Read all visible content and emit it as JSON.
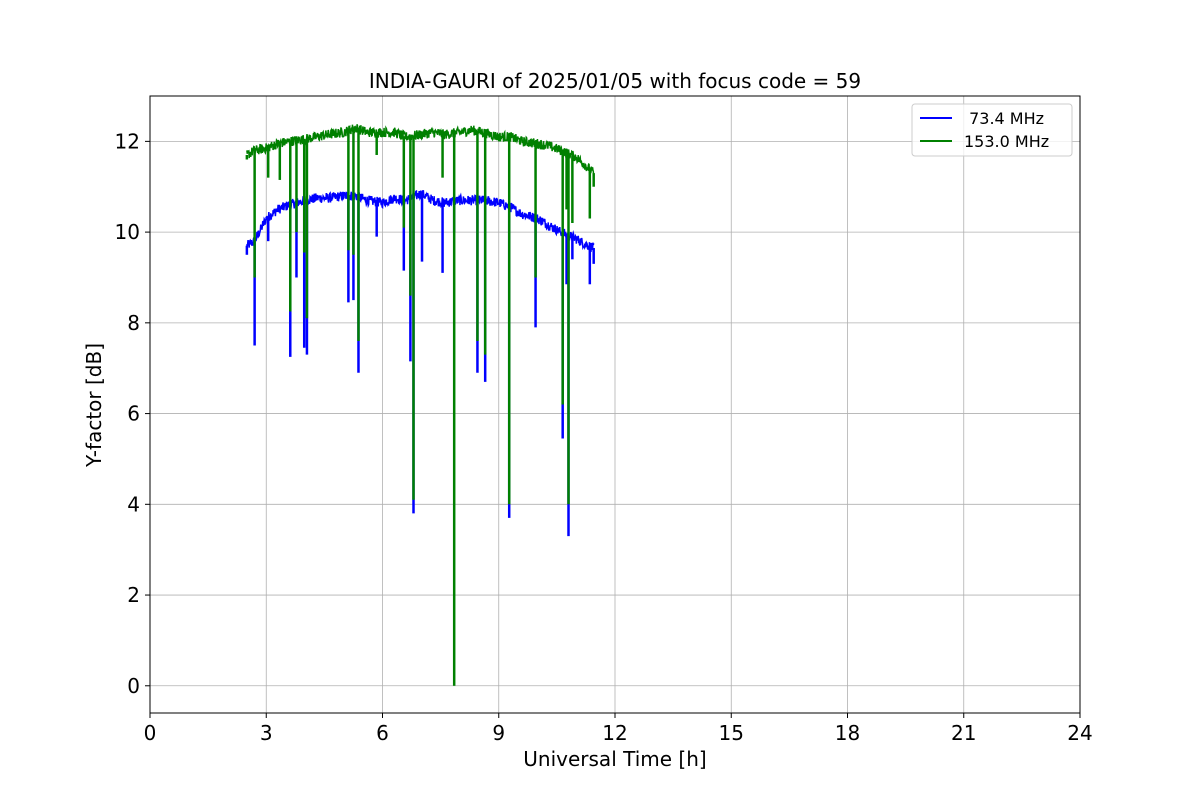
{
  "chart_data": {
    "type": "line",
    "title": "INDIA-GAURI of 2025/01/05 with focus code = 59",
    "xlabel": "Universal Time [h]",
    "ylabel": "Y-factor [dB]",
    "xlim": [
      0,
      24
    ],
    "ylim": [
      -0.6,
      13.0
    ],
    "xticks": [
      0,
      3,
      6,
      9,
      12,
      15,
      18,
      21,
      24
    ],
    "yticks": [
      0,
      2,
      4,
      6,
      8,
      10,
      12
    ],
    "grid": true,
    "legend_position": "top-right",
    "series": [
      {
        "name": " 73.4 MHz",
        "color": "#0000ff",
        "x": [
          2.5,
          2.7,
          3.0,
          3.3,
          3.6,
          4.0,
          4.3,
          4.6,
          5.0,
          5.3,
          5.6,
          6.0,
          6.3,
          6.6,
          7.0,
          7.3,
          7.6,
          8.0,
          8.3,
          8.6,
          9.0,
          9.3,
          9.6,
          10.0,
          10.3,
          10.6,
          11.0,
          11.2,
          11.45
        ],
        "values": [
          9.7,
          9.8,
          10.3,
          10.5,
          10.6,
          10.7,
          10.75,
          10.75,
          10.8,
          10.8,
          10.7,
          10.65,
          10.75,
          10.7,
          10.85,
          10.7,
          10.65,
          10.7,
          10.7,
          10.7,
          10.65,
          10.55,
          10.4,
          10.3,
          10.15,
          10.0,
          9.85,
          9.75,
          9.65
        ],
        "dips": [
          {
            "x": 2.5,
            "y": 9.5
          },
          {
            "x": 2.7,
            "y": 7.5
          },
          {
            "x": 3.05,
            "y": 9.8
          },
          {
            "x": 3.62,
            "y": 7.25
          },
          {
            "x": 3.78,
            "y": 9.0
          },
          {
            "x": 3.98,
            "y": 7.45
          },
          {
            "x": 4.05,
            "y": 7.3
          },
          {
            "x": 5.12,
            "y": 8.45
          },
          {
            "x": 5.25,
            "y": 8.5
          },
          {
            "x": 5.38,
            "y": 6.9
          },
          {
            "x": 5.85,
            "y": 9.9
          },
          {
            "x": 6.55,
            "y": 9.15
          },
          {
            "x": 6.72,
            "y": 7.15
          },
          {
            "x": 6.8,
            "y": 3.8
          },
          {
            "x": 7.02,
            "y": 9.35
          },
          {
            "x": 7.55,
            "y": 9.1
          },
          {
            "x": 7.85,
            "y": 10.0
          },
          {
            "x": 8.45,
            "y": 6.9
          },
          {
            "x": 8.65,
            "y": 6.7
          },
          {
            "x": 9.27,
            "y": 3.7
          },
          {
            "x": 9.95,
            "y": 7.9
          },
          {
            "x": 10.65,
            "y": 5.45
          },
          {
            "x": 10.75,
            "y": 8.85
          },
          {
            "x": 10.8,
            "y": 3.3
          },
          {
            "x": 10.9,
            "y": 9.4
          },
          {
            "x": 11.35,
            "y": 8.85
          },
          {
            "x": 11.45,
            "y": 9.3
          }
        ]
      },
      {
        "name": "153.0 MHz",
        "color": "#008000",
        "x": [
          2.5,
          2.7,
          3.0,
          3.3,
          3.6,
          4.0,
          4.3,
          4.6,
          5.0,
          5.3,
          5.6,
          6.0,
          6.3,
          6.6,
          7.0,
          7.3,
          7.6,
          8.0,
          8.3,
          8.6,
          9.0,
          9.3,
          9.6,
          10.0,
          10.3,
          10.6,
          11.0,
          11.2,
          11.45
        ],
        "values": [
          11.7,
          11.8,
          11.85,
          11.95,
          12.0,
          12.05,
          12.1,
          12.15,
          12.2,
          12.3,
          12.2,
          12.2,
          12.2,
          12.1,
          12.15,
          12.2,
          12.15,
          12.2,
          12.25,
          12.2,
          12.1,
          12.1,
          12.0,
          11.95,
          11.9,
          11.8,
          11.65,
          11.5,
          11.3
        ],
        "dips": [
          {
            "x": 2.5,
            "y": 11.6
          },
          {
            "x": 2.7,
            "y": 9.0
          },
          {
            "x": 3.05,
            "y": 11.2
          },
          {
            "x": 3.35,
            "y": 11.15
          },
          {
            "x": 3.62,
            "y": 8.25
          },
          {
            "x": 3.78,
            "y": 10.0
          },
          {
            "x": 3.98,
            "y": 9.55
          },
          {
            "x": 4.05,
            "y": 8.1
          },
          {
            "x": 5.12,
            "y": 9.6
          },
          {
            "x": 5.25,
            "y": 9.5
          },
          {
            "x": 5.38,
            "y": 7.6
          },
          {
            "x": 5.85,
            "y": 11.7
          },
          {
            "x": 6.55,
            "y": 10.1
          },
          {
            "x": 6.72,
            "y": 8.6
          },
          {
            "x": 6.8,
            "y": 4.1
          },
          {
            "x": 7.55,
            "y": 11.2
          },
          {
            "x": 7.85,
            "y": 0.0
          },
          {
            "x": 8.45,
            "y": 7.6
          },
          {
            "x": 8.65,
            "y": 7.3
          },
          {
            "x": 9.27,
            "y": 4.0
          },
          {
            "x": 9.95,
            "y": 9.0
          },
          {
            "x": 10.65,
            "y": 6.2
          },
          {
            "x": 10.75,
            "y": 10.5
          },
          {
            "x": 10.8,
            "y": 4.0
          },
          {
            "x": 10.9,
            "y": 10.2
          },
          {
            "x": 11.35,
            "y": 10.3
          },
          {
            "x": 11.45,
            "y": 11.0
          }
        ]
      }
    ]
  }
}
